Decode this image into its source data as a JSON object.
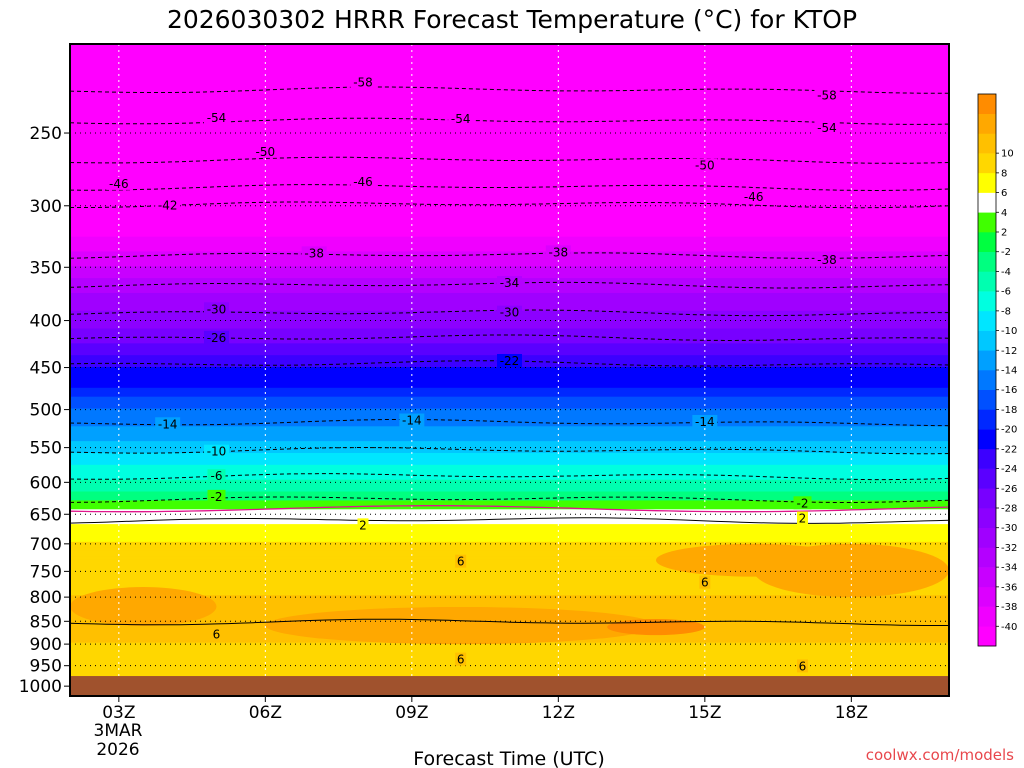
{
  "chart_data": {
    "type": "heatmap",
    "title": "2026030302 HRRR Forecast Temperature (°C) for KTOP",
    "xlabel": "Forecast Time (UTC)",
    "ylabel": "",
    "x_ticks": [
      {
        "label": "03Z",
        "hour": 3
      },
      {
        "label": "06Z",
        "hour": 6
      },
      {
        "label": "09Z",
        "hour": 9
      },
      {
        "label": "12Z",
        "hour": 12
      },
      {
        "label": "15Z",
        "hour": 15
      },
      {
        "label": "18Z",
        "hour": 18
      }
    ],
    "x_date_label": [
      "3MAR",
      "2026"
    ],
    "xlim": [
      2,
      20
    ],
    "y_ticks": [
      250,
      300,
      350,
      400,
      450,
      500,
      550,
      600,
      650,
      700,
      750,
      800,
      850,
      900,
      950,
      1000
    ],
    "ylim": [
      200,
      1025
    ],
    "y_axis": "pressure (hPa), logarithmic, decreasing upward",
    "surface_pressure": 975,
    "colorbar": {
      "colors": [
        "#ff00ff",
        "#f000ff",
        "#dc00ff",
        "#c800ff",
        "#b400ff",
        "#a000ff",
        "#8c00ff",
        "#7800ff",
        "#5a00ff",
        "#3c00ff",
        "#0000ff",
        "#0028ff",
        "#0050ff",
        "#0078ff",
        "#00a0ff",
        "#00c8ff",
        "#00e6ff",
        "#00ffe0",
        "#00ffb0",
        "#00ff80",
        "#00ff40",
        "#40ff00",
        "#ffffff",
        "#ffff00",
        "#ffd700",
        "#ffc000",
        "#ffa800",
        "#ff8c00"
      ],
      "labels": [
        "-40",
        "-38",
        "-36",
        "-34",
        "-32",
        "-30",
        "-28",
        "-26",
        "-24",
        "-22",
        "-20",
        "-18",
        "-16",
        "-14",
        "-12",
        "-10",
        "-8",
        "-6",
        "-4",
        "-2",
        "2",
        "4",
        "6",
        "8",
        "10"
      ]
    },
    "temperature_by_level": [
      {
        "p": 200,
        "t": -60
      },
      {
        "p": 225,
        "t": -58
      },
      {
        "p": 250,
        "t": -54
      },
      {
        "p": 275,
        "t": -50
      },
      {
        "p": 300,
        "t": -45
      },
      {
        "p": 325,
        "t": -40
      },
      {
        "p": 350,
        "t": -36
      },
      {
        "p": 375,
        "t": -32
      },
      {
        "p": 400,
        "t": -29
      },
      {
        "p": 425,
        "t": -26
      },
      {
        "p": 450,
        "t": -22
      },
      {
        "p": 475,
        "t": -20
      },
      {
        "p": 500,
        "t": -16
      },
      {
        "p": 525,
        "t": -14
      },
      {
        "p": 550,
        "t": -11
      },
      {
        "p": 575,
        "t": -8
      },
      {
        "p": 600,
        "t": -6
      },
      {
        "p": 625,
        "t": -3
      },
      {
        "p": 650,
        "t": 1
      },
      {
        "p": 700,
        "t": 4
      },
      {
        "p": 750,
        "t": 5
      },
      {
        "p": 800,
        "t": 6
      },
      {
        "p": 850,
        "t": 7
      },
      {
        "p": 900,
        "t": 6
      },
      {
        "p": 950,
        "t": 5
      },
      {
        "p": 975,
        "t": 5
      }
    ],
    "contour_labels": [
      {
        "text": "-58",
        "hour": 8,
        "p": 222
      },
      {
        "text": "-58",
        "hour": 17.5,
        "p": 227
      },
      {
        "text": "-54",
        "hour": 5,
        "p": 240
      },
      {
        "text": "-54",
        "hour": 10,
        "p": 242
      },
      {
        "text": "-54",
        "hour": 17.5,
        "p": 246
      },
      {
        "text": "-50",
        "hour": 6,
        "p": 263
      },
      {
        "text": "-50",
        "hour": 15,
        "p": 272
      },
      {
        "text": "-46",
        "hour": 3,
        "p": 282
      },
      {
        "text": "-46",
        "hour": 8,
        "p": 284
      },
      {
        "text": "-46",
        "hour": 16,
        "p": 293
      },
      {
        "text": "-42",
        "hour": 4,
        "p": 299
      },
      {
        "text": "-38",
        "hour": 7,
        "p": 339
      },
      {
        "text": "-38",
        "hour": 12,
        "p": 339
      },
      {
        "text": "-38",
        "hour": 17.5,
        "p": 341
      },
      {
        "text": "-34",
        "hour": 11,
        "p": 366
      },
      {
        "text": "-30",
        "hour": 5,
        "p": 390
      },
      {
        "text": "-30",
        "hour": 11,
        "p": 395
      },
      {
        "text": "-26",
        "hour": 5,
        "p": 418
      },
      {
        "text": "-22",
        "hour": 11,
        "p": 446
      },
      {
        "text": "-14",
        "hour": 4,
        "p": 516
      },
      {
        "text": "-14",
        "hour": 9,
        "p": 518
      },
      {
        "text": "-14",
        "hour": 15,
        "p": 516
      },
      {
        "text": "-10",
        "hour": 5,
        "p": 554
      },
      {
        "text": "-6",
        "hour": 5,
        "p": 591
      },
      {
        "text": "-2",
        "hour": 5,
        "p": 624
      },
      {
        "text": "-2",
        "hour": 17,
        "p": 628
      },
      {
        "text": "2",
        "hour": 8,
        "p": 668
      },
      {
        "text": "2",
        "hour": 17,
        "p": 652
      },
      {
        "text": "6",
        "hour": 10,
        "p": 737
      },
      {
        "text": "6",
        "hour": 15,
        "p": 768
      },
      {
        "text": "6",
        "hour": 5,
        "p": 876
      },
      {
        "text": "6",
        "hour": 10,
        "p": 935
      },
      {
        "text": "6",
        "hour": 17,
        "p": 945
      }
    ]
  },
  "credit": "coolwx.com/models"
}
